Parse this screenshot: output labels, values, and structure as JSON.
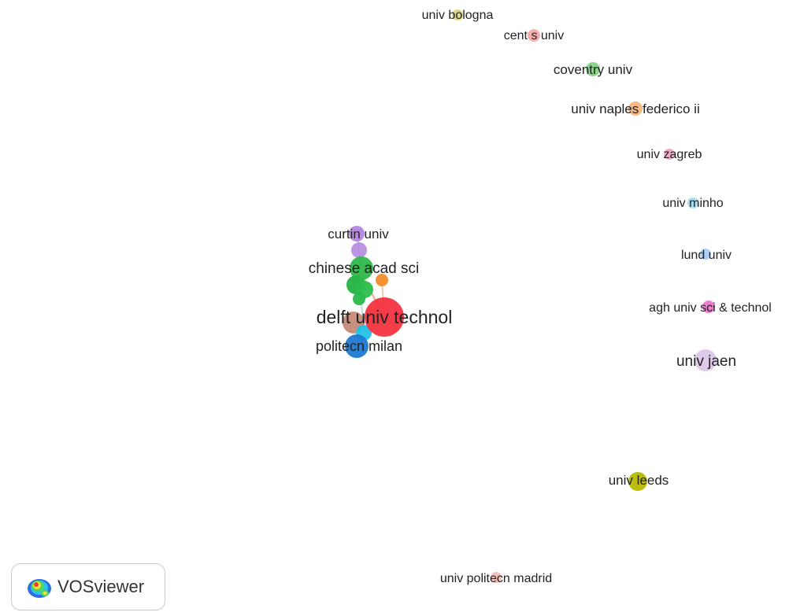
{
  "brand": {
    "name": "VOSviewer",
    "logo_icon": "vosviewer-heatmap-logo-icon"
  },
  "network": {
    "nodes": [
      {
        "id": "univ-bologna",
        "label": "univ bologna",
        "color": "#d7d27a"
      },
      {
        "id": "cent-s-univ",
        "label": "cent s univ",
        "color": "#f5a3a3"
      },
      {
        "id": "coventry-univ",
        "label": "coventry univ",
        "color": "#7fd17f"
      },
      {
        "id": "univ-naples-federico-ii",
        "label": "univ naples federico ii",
        "color": "#f5b27a"
      },
      {
        "id": "univ-zagreb",
        "label": "univ zagreb",
        "color": "#f2a0c8"
      },
      {
        "id": "univ-minho",
        "label": "univ minho",
        "color": "#9fdcef"
      },
      {
        "id": "curtin-univ",
        "label": "curtin univ",
        "color": "#b07fe0"
      },
      {
        "id": "lund-univ",
        "label": "lund univ",
        "color": "#a9c8f2"
      },
      {
        "id": "chinese-acad-sci",
        "label": "chinese acad sci",
        "color": "#2db84a"
      },
      {
        "id": "agh-univ-sci-technol",
        "label": "agh univ sci & technol",
        "color": "#ea6fc8"
      },
      {
        "id": "delft-univ-technol",
        "label": "delft univ technol",
        "color": "#f4333f"
      },
      {
        "id": "politecn-milan",
        "label": "politecn milan",
        "color": "#1f7ad1"
      },
      {
        "id": "univ-jaen",
        "label": "univ jaen",
        "color": "#d8c4e6"
      },
      {
        "id": "univ-leeds",
        "label": "univ leeds",
        "color": "#b8b800"
      },
      {
        "id": "univ-politecn-madrid",
        "label": "univ politecn madrid",
        "color": "#f5b8b0"
      }
    ]
  }
}
